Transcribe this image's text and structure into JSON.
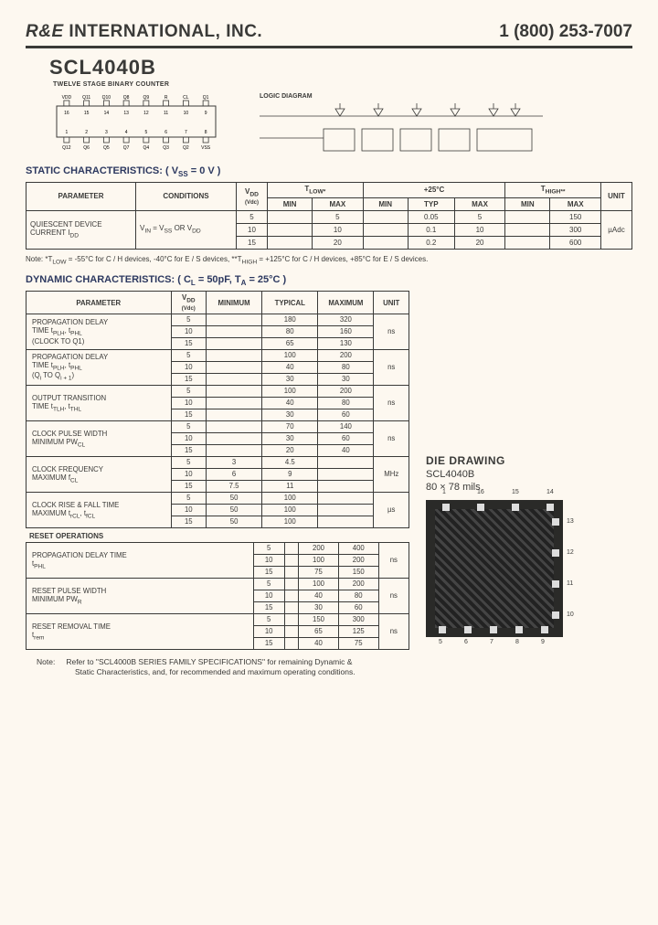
{
  "header": {
    "company_italic": "R&E",
    "company_rest": " INTERNATIONAL, INC.",
    "phone": "1 (800) 253-7007"
  },
  "part": {
    "number": "SCL4040B",
    "subtitle": "TWELVE STAGE BINARY COUNTER",
    "logic_label": "LOGIC DIAGRAM"
  },
  "static": {
    "title": "STATIC CHARACTERISTICS: ( V",
    "title_sub": "SS",
    "title_rest": " = 0 V )",
    "headers": {
      "parameter": "PARAMETER",
      "conditions": "CONDITIONS",
      "vdd": "V",
      "vdd_sub": "DD",
      "vdd_unit": "(Vdc)",
      "tlow": "T",
      "tlow_sub": "LOW*",
      "c25": "+25°C",
      "thigh": "T",
      "thigh_sub": "HIGH**",
      "min": "MIN",
      "max": "MAX",
      "typ": "TYP",
      "unit": "UNIT"
    },
    "row": {
      "param1": "QUIESCENT DEVICE",
      "param2": "CURRENT    I",
      "param2_sub": "DD",
      "cond": "V",
      "cond_sub1": "IN",
      "cond_mid": " = V",
      "cond_sub2": "SS",
      "cond_mid2": " OR V",
      "cond_sub3": "DD",
      "rows": [
        {
          "vdd": "5",
          "tlow_max": "5",
          "typ": "0.05",
          "c25_max": "5",
          "thigh_max": "150"
        },
        {
          "vdd": "10",
          "tlow_max": "10",
          "typ": "0.1",
          "c25_max": "10",
          "thigh_max": "300"
        },
        {
          "vdd": "15",
          "tlow_max": "20",
          "typ": "0.2",
          "c25_max": "20",
          "thigh_max": "600"
        }
      ],
      "unit": "µAdc"
    },
    "note": "Note: *T",
    "note_sub1": "LOW",
    "note_mid1": " = -55°C for C / H devices, -40°C for E / S devices, **T",
    "note_sub2": "HIGH",
    "note_mid2": " = +125°C for C / H devices, +85°C for E / S devices."
  },
  "dynamic": {
    "title": "DYNAMIC CHARACTERISTICS: ( C",
    "title_sub1": "L",
    "title_mid": " = 50pF, T",
    "title_sub2": "A",
    "title_rest": " = 25°C )",
    "headers": {
      "parameter": "PARAMETER",
      "vdd": "V",
      "vdd_sub": "DD",
      "vdd_unit": "(Vdc)",
      "min": "MINIMUM",
      "typ": "TYPICAL",
      "max": "MAXIMUM",
      "unit": "UNIT"
    },
    "groups": [
      {
        "param_lines": [
          "PROPAGATION DELAY",
          "TIME       t<sub>PLH</sub>, t<sub>PHL</sub>",
          "(CLOCK TO Q1)"
        ],
        "unit": "ns",
        "rows": [
          {
            "vdd": "5",
            "min": "",
            "typ": "180",
            "max": "320"
          },
          {
            "vdd": "10",
            "min": "",
            "typ": "80",
            "max": "160"
          },
          {
            "vdd": "15",
            "min": "",
            "typ": "65",
            "max": "130"
          }
        ]
      },
      {
        "param_lines": [
          "PROPAGATION DELAY",
          "TIME       t<sub>PLH</sub>, t<sub>PHL</sub>",
          "(Q<sub>i</sub> TO Q<sub>i + 1</sub>)"
        ],
        "unit": "ns",
        "rows": [
          {
            "vdd": "5",
            "min": "",
            "typ": "100",
            "max": "200"
          },
          {
            "vdd": "10",
            "min": "",
            "typ": "40",
            "max": "80"
          },
          {
            "vdd": "15",
            "min": "",
            "typ": "30",
            "max": "30"
          }
        ]
      },
      {
        "param_lines": [
          "OUTPUT TRANSITION",
          "TIME    t<sub>TLH</sub>, t<sub>THL</sub>",
          ""
        ],
        "unit": "ns",
        "rows": [
          {
            "vdd": "5",
            "min": "",
            "typ": "100",
            "max": "200"
          },
          {
            "vdd": "10",
            "min": "",
            "typ": "40",
            "max": "80"
          },
          {
            "vdd": "15",
            "min": "",
            "typ": "30",
            "max": "60"
          }
        ]
      },
      {
        "param_lines": [
          "CLOCK PULSE WIDTH",
          "MINIMUM       PW<sub>CL</sub>",
          ""
        ],
        "unit": "ns",
        "rows": [
          {
            "vdd": "5",
            "min": "",
            "typ": "70",
            "max": "140"
          },
          {
            "vdd": "10",
            "min": "",
            "typ": "30",
            "max": "60"
          },
          {
            "vdd": "15",
            "min": "",
            "typ": "20",
            "max": "40"
          }
        ]
      },
      {
        "param_lines": [
          "CLOCK FREQUENCY",
          "MAXIMUM    f<sub>CL</sub>",
          ""
        ],
        "unit": "MHz",
        "rows": [
          {
            "vdd": "5",
            "min": "3",
            "typ": "4.5",
            "max": ""
          },
          {
            "vdd": "10",
            "min": "6",
            "typ": "9",
            "max": ""
          },
          {
            "vdd": "15",
            "min": "7.5",
            "typ": "11",
            "max": ""
          }
        ]
      },
      {
        "param_lines": [
          "CLOCK RISE & FALL TIME",
          "MAXIMUM    t<sub>rCL</sub>, t<sub>fCL</sub>",
          ""
        ],
        "unit": "µs",
        "rows": [
          {
            "vdd": "5",
            "min": "50",
            "typ": "100",
            "max": ""
          },
          {
            "vdd": "10",
            "min": "50",
            "typ": "100",
            "max": ""
          },
          {
            "vdd": "15",
            "min": "50",
            "typ": "100",
            "max": ""
          }
        ]
      }
    ],
    "reset_title": "RESET OPERATIONS",
    "reset_groups": [
      {
        "param_lines": [
          "PROPAGATION DELAY TIME",
          "            t<sub>PHL</sub>",
          ""
        ],
        "unit": "ns",
        "rows": [
          {
            "vdd": "5",
            "min": "",
            "typ": "200",
            "max": "400"
          },
          {
            "vdd": "10",
            "min": "",
            "typ": "100",
            "max": "200"
          },
          {
            "vdd": "15",
            "min": "",
            "typ": "75",
            "max": "150"
          }
        ]
      },
      {
        "param_lines": [
          "RESET PULSE WIDTH",
          "MINIMUM       PW<sub>R</sub>",
          ""
        ],
        "unit": "ns",
        "rows": [
          {
            "vdd": "5",
            "min": "",
            "typ": "100",
            "max": "200"
          },
          {
            "vdd": "10",
            "min": "",
            "typ": "40",
            "max": "80"
          },
          {
            "vdd": "15",
            "min": "",
            "typ": "30",
            "max": "60"
          }
        ]
      },
      {
        "param_lines": [
          "RESET REMOVAL TIME",
          "            t<sub>rem</sub>",
          ""
        ],
        "unit": "ns",
        "rows": [
          {
            "vdd": "5",
            "min": "",
            "typ": "150",
            "max": "300"
          },
          {
            "vdd": "10",
            "min": "",
            "typ": "65",
            "max": "125"
          },
          {
            "vdd": "15",
            "min": "",
            "typ": "40",
            "max": "75"
          }
        ]
      }
    ]
  },
  "die": {
    "title": "DIE DRAWING",
    "part": "SCL4040B",
    "size": "80 × 78 mils",
    "pins_top": [
      "1",
      "16",
      "15",
      "14"
    ],
    "pins_right": [
      "13",
      "12",
      "11",
      "10"
    ],
    "pins_bottom": [
      "5",
      "6",
      "7",
      "8",
      "9"
    ]
  },
  "footnote": {
    "label": "Note:",
    "text1": "Refer to \"SCL4000B SERIES FAMILY SPECIFICATIONS\" for remaining Dynamic &",
    "text2": "Static Characteristics, and, for recommended and maximum operating conditions."
  },
  "pinout": {
    "top_labels": [
      "VDD",
      "Q11",
      "Q10",
      "Q8",
      "Q9",
      "R",
      "CL",
      "Q1"
    ],
    "top_pins": [
      "16",
      "15",
      "14",
      "13",
      "12",
      "11",
      "10",
      "9"
    ],
    "bot_pins": [
      "1",
      "2",
      "3",
      "4",
      "5",
      "6",
      "7",
      "8"
    ],
    "bot_labels": [
      "Q12",
      "Q6",
      "Q5",
      "Q7",
      "Q4",
      "Q3",
      "Q2",
      "VSS"
    ]
  }
}
